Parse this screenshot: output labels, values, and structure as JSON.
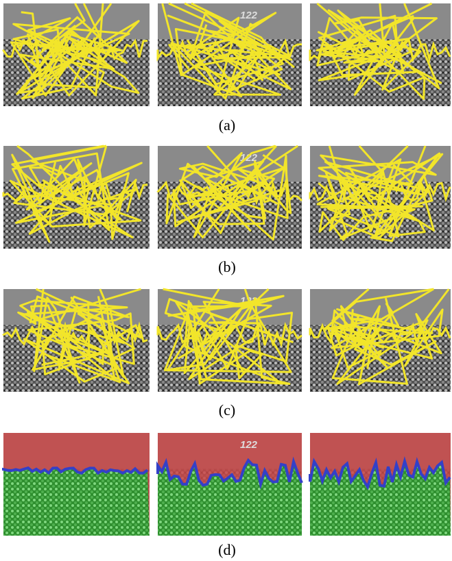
{
  "figure": {
    "rows": [
      {
        "label": "(a)"
      },
      {
        "label": "(b)"
      },
      {
        "label": "(c)"
      },
      {
        "label": "(d)"
      }
    ],
    "sign_text": "122"
  }
}
